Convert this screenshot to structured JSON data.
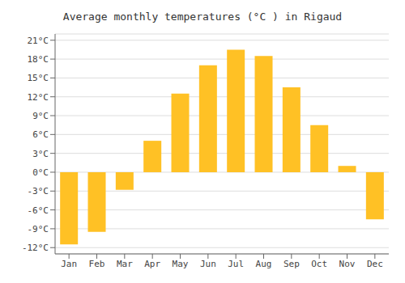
{
  "chart_data": {
    "type": "bar",
    "title": "Average monthly temperatures (°C ) in Rigaud",
    "categories": [
      "Jan",
      "Feb",
      "Mar",
      "Apr",
      "May",
      "Jun",
      "Jul",
      "Aug",
      "Sep",
      "Oct",
      "Nov",
      "Dec"
    ],
    "values": [
      -11.5,
      -9.5,
      -2.8,
      5.0,
      12.5,
      17.0,
      19.5,
      18.5,
      13.5,
      7.5,
      1.0,
      -7.5
    ],
    "color": "#FFC125",
    "ylim": [
      -13,
      22
    ],
    "yticks": [
      {
        "value": -12,
        "label": "-12°C"
      },
      {
        "value": -9,
        "label": "-9°C"
      },
      {
        "value": -6,
        "label": "-6°C"
      },
      {
        "value": -3,
        "label": "-3°C"
      },
      {
        "value": 0,
        "label": "0°C"
      },
      {
        "value": 3,
        "label": "3°C"
      },
      {
        "value": 6,
        "label": "6°C"
      },
      {
        "value": 9,
        "label": "9°C"
      },
      {
        "value": 12,
        "label": "12°C"
      },
      {
        "value": 15,
        "label": "15°C"
      },
      {
        "value": 18,
        "label": "18°C"
      },
      {
        "value": 21,
        "label": "21°C"
      }
    ],
    "grid": true
  }
}
